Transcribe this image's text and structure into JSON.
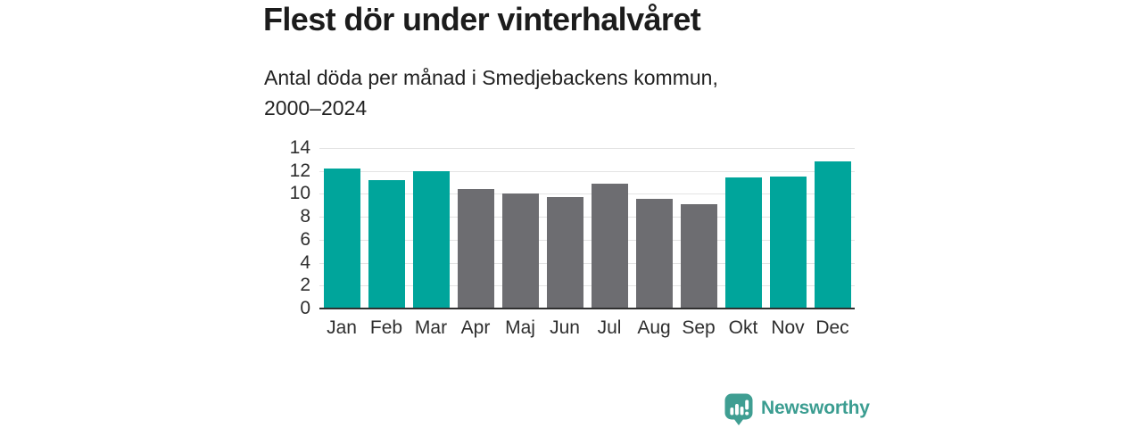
{
  "header": {
    "title": "Flest dör under vinterhalvåret",
    "subtitle_lines": [
      "Antal döda per månad i Smedjebackens kommun,",
      "2000–2024"
    ]
  },
  "branding": {
    "name": "Newsworthy",
    "icon": "newsworthy-speech-bubble-bar-chart-icon",
    "color": "#3b9d91"
  },
  "colors": {
    "winter_bar": "#00a59b",
    "summer_bar": "#6d6d71",
    "gridline": "#e3e3e3",
    "axis": "#303030",
    "text": "#2e2e2e"
  },
  "chart_data": {
    "type": "bar",
    "title": "Flest dör under vinterhalvåret",
    "subtitle": "Antal döda per månad i Smedjebackens kommun, 2000–2024",
    "categories": [
      "Jan",
      "Feb",
      "Mar",
      "Apr",
      "Maj",
      "Jun",
      "Jul",
      "Aug",
      "Sep",
      "Okt",
      "Nov",
      "Dec"
    ],
    "values": [
      12.2,
      11.2,
      12.0,
      10.4,
      10.0,
      9.7,
      10.9,
      9.6,
      9.1,
      11.4,
      11.5,
      12.8
    ],
    "bar_colors": [
      "#00a59b",
      "#00a59b",
      "#00a59b",
      "#6d6d71",
      "#6d6d71",
      "#6d6d71",
      "#6d6d71",
      "#6d6d71",
      "#6d6d71",
      "#00a59b",
      "#00a59b",
      "#00a59b"
    ],
    "xlabel": "",
    "ylabel": "",
    "ylim": [
      0,
      14
    ],
    "yticks": [
      0,
      2,
      4,
      6,
      8,
      10,
      12,
      14
    ],
    "grid": true,
    "legend": false
  }
}
